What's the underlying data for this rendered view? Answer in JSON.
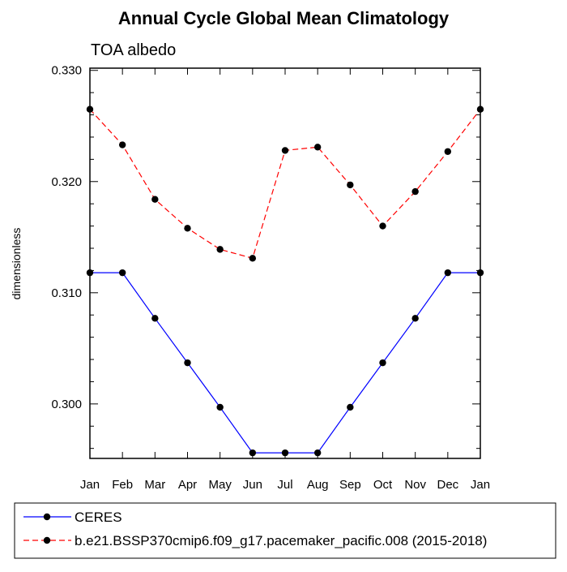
{
  "chart_data": {
    "type": "line",
    "title": "Annual Cycle Global Mean Climatology",
    "subtitle": "TOA albedo",
    "xlabel": "",
    "ylabel": "dimensionless",
    "categories": [
      "Jan",
      "Feb",
      "Mar",
      "Apr",
      "May",
      "Jun",
      "Jul",
      "Aug",
      "Sep",
      "Oct",
      "Nov",
      "Dec",
      "Jan"
    ],
    "ylim": [
      0.2951,
      0.3302
    ],
    "yticks": [
      0.3,
      0.31,
      0.32,
      0.33
    ],
    "ytick_labels": [
      "0.300",
      "0.310",
      "0.320",
      "0.330"
    ],
    "grid": false,
    "legend_position": "bottom",
    "series": [
      {
        "name": "CERES",
        "color": "#0000ff",
        "dash": "solid",
        "marker": "filled-circle",
        "values": [
          0.3118,
          0.3118,
          0.3077,
          0.3037,
          0.2997,
          0.2956,
          0.2956,
          0.2956,
          0.2997,
          0.3037,
          0.3077,
          0.3118,
          0.3118
        ]
      },
      {
        "name": "b.e21.BSSP370cmip6.f09_g17.pacemaker_pacific.008 (2015-2018)",
        "color": "#ff0000",
        "dash": "dashed",
        "marker": "filled-circle",
        "values": [
          0.3265,
          0.3233,
          0.3184,
          0.3158,
          0.3139,
          0.3131,
          0.3228,
          0.3231,
          0.3197,
          0.316,
          0.3191,
          0.3227,
          0.3265
        ]
      }
    ]
  }
}
